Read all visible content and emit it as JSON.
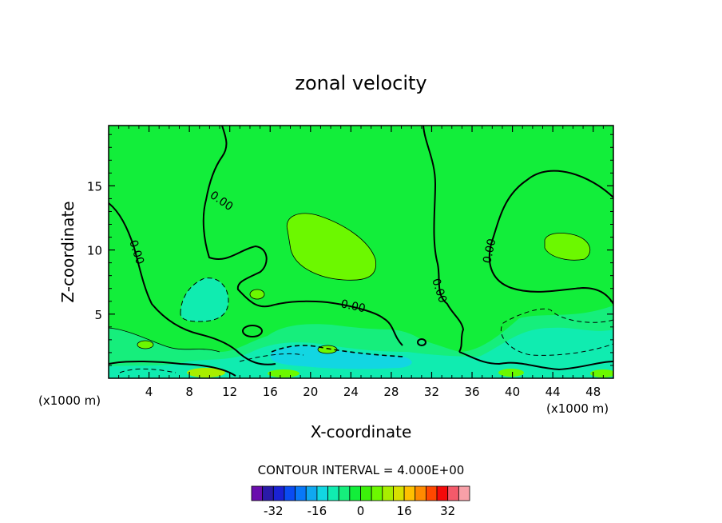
{
  "chart_data": {
    "type": "heatmap",
    "title": "zonal velocity",
    "xlabel": "X-coordinate",
    "ylabel": "Z-coordinate",
    "x_unit_left": "(x1000 m)",
    "x_unit_right": "(x1000 m)",
    "xlim": [
      0,
      50
    ],
    "ylim": [
      0,
      19.7
    ],
    "x_ticks": [
      4,
      8,
      12,
      16,
      20,
      24,
      28,
      32,
      36,
      40,
      44,
      48
    ],
    "y_ticks": [
      5,
      10,
      15
    ],
    "contour_interval_text": "CONTOUR INTERVAL = 4.000E+00",
    "contour_labels": [
      "0.00",
      "0.00",
      "0.00",
      "0.00",
      "0.00"
    ],
    "colorbar": {
      "levels": [
        -36,
        -32,
        -28,
        -24,
        -20,
        -16,
        -12,
        -8,
        -4,
        0,
        4,
        8,
        12,
        16,
        20,
        24,
        28,
        32,
        36
      ],
      "tick_values": [
        -32,
        -16,
        0,
        16,
        32
      ],
      "tick_labels": [
        "-32",
        "-16",
        "0",
        "16",
        "32"
      ],
      "colors": [
        "#6a0dad",
        "#2a1aa8",
        "#1a22d4",
        "#0a4cf2",
        "#0878f8",
        "#10a8f0",
        "#12d6e2",
        "#10ecb0",
        "#16ee7c",
        "#12ee3a",
        "#3cf00a",
        "#6cf800",
        "#a8ee00",
        "#d8e000",
        "#ffc000",
        "#ff8a00",
        "#ff4800",
        "#f40a0a",
        "#f45a6a",
        "#f8a0a8"
      ]
    },
    "fields": {
      "background_level": 0,
      "regions": [
        {
          "kind": "positive",
          "value": 4,
          "x": [
            18.3,
            26.6
          ],
          "z": [
            7.8,
            12.6
          ]
        },
        {
          "kind": "positive",
          "value": 4,
          "x": [
            43.5,
            47.3
          ],
          "z": [
            9.4,
            11.4
          ]
        },
        {
          "kind": "negative",
          "value": -4,
          "x": [
            7.4,
            12.2
          ],
          "z": [
            4.3,
            7.9
          ]
        },
        {
          "kind": "negative",
          "value": -4,
          "x": [
            38.8,
            50
          ],
          "z": [
            1.8,
            5.5
          ]
        },
        {
          "kind": "negative",
          "value": -8,
          "x": [
            14.5,
            30
          ],
          "z": [
            0,
            2.5
          ]
        }
      ]
    }
  }
}
